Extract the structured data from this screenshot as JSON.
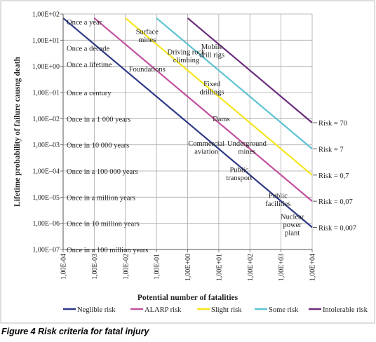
{
  "caption": "Figure 4 Risk criteria for fatal injury",
  "chart_data": {
    "type": "line",
    "title": "",
    "xlabel": "Potential number of fatalities",
    "ylabel": "Lifetime probability of failure causng death",
    "x_scale": "log",
    "y_scale": "log",
    "xlim": [
      0.0001,
      10000
    ],
    "ylim": [
      1e-07,
      100
    ],
    "x_ticks": [
      0.0001,
      0.001,
      0.01,
      0.1,
      1,
      10,
      100,
      1000,
      10000
    ],
    "x_tick_labels": [
      "1,00E-04",
      "1,00E-03",
      "1,00E-02",
      "1,00E-01",
      "1,00E+00",
      "1,00E+01",
      "1,00E+02",
      "1,00E+03",
      "1,00E+04"
    ],
    "y_ticks": [
      100,
      10,
      1,
      0.1,
      0.01,
      0.001,
      0.0001,
      1e-05,
      1e-06,
      1e-07
    ],
    "y_tick_labels": [
      "1,00E+02",
      "1,00E+01",
      "1,00E+00",
      "1,00E–01",
      "1,00E–02",
      "1,00E–03",
      "1,00E–04",
      "1,00E–05",
      "1,00E–06",
      "1,00E–07"
    ],
    "grid": true,
    "legend_position": "bottom",
    "series": [
      {
        "name": "Neglible risk",
        "color": "#2e3a87",
        "x": [
          0.0001,
          10000
        ],
        "y": [
          70,
          7e-07
        ]
      },
      {
        "name": "ALARP risk",
        "color": "#c2509e",
        "x": [
          0.001,
          10000
        ],
        "y": [
          70,
          7e-06
        ]
      },
      {
        "name": "Slight risk",
        "color": "#f5e51e",
        "x": [
          0.01,
          10000
        ],
        "y": [
          70,
          7e-05
        ]
      },
      {
        "name": "Some risk",
        "color": "#5ec3d2",
        "x": [
          0.1,
          10000
        ],
        "y": [
          70,
          0.0007
        ]
      },
      {
        "name": "Intolerable risk",
        "color": "#6b2d7b",
        "x": [
          1,
          10000
        ],
        "y": [
          70,
          0.007
        ]
      }
    ],
    "risk_labels": [
      {
        "text": "Risk = 70",
        "y": 0.007
      },
      {
        "text": "Risk = 7",
        "y": 0.0007
      },
      {
        "text": "Risk = 0,7",
        "y": 7e-05
      },
      {
        "text": "Risk = 0,07",
        "y": 7e-06
      },
      {
        "text": "Risk = 0,007",
        "y": 7e-07
      }
    ],
    "frequency_labels": [
      {
        "text": "Once a year",
        "y": 50
      },
      {
        "text": "Once a decade",
        "y": 5
      },
      {
        "text": "Once a lifetime",
        "y": 1.2
      },
      {
        "text": "Once a century",
        "y": 0.1
      },
      {
        "text": "Once in a 1 000 years",
        "y": 0.01
      },
      {
        "text": "Once in 10 000 years",
        "y": 0.001
      },
      {
        "text": "Once in a 100 000 years",
        "y": 0.0001
      },
      {
        "text": "Once in a million years",
        "y": 1e-05
      },
      {
        "text": "Once in 10 million years",
        "y": 1e-06
      },
      {
        "text": "Once in a 100 million years",
        "y": 1e-07
      }
    ],
    "annotations": [
      {
        "text": [
          "Surface",
          "mines"
        ],
        "x": 0.05,
        "y": 15
      },
      {
        "text": [
          "Driving rock",
          "climbing"
        ],
        "x": 0.9,
        "y": 2.5
      },
      {
        "text": [
          "Mobile",
          "drill rigs"
        ],
        "x": 6,
        "y": 4
      },
      {
        "text": [
          "Foundations"
        ],
        "x": 0.05,
        "y": 0.8
      },
      {
        "text": [
          "Fixed",
          "drillings"
        ],
        "x": 6,
        "y": 0.15
      },
      {
        "text": [
          "Dams"
        ],
        "x": 12,
        "y": 0.01
      },
      {
        "text": [
          "Commercial",
          "aviation"
        ],
        "x": 4,
        "y": 0.0008
      },
      {
        "text": [
          "Underground",
          "mines"
        ],
        "x": 80,
        "y": 0.0008
      },
      {
        "text": [
          "Public",
          "transport"
        ],
        "x": 45,
        "y": 8e-05
      },
      {
        "text": [
          "Public",
          "facilities"
        ],
        "x": 800,
        "y": 8e-06
      },
      {
        "text": [
          "Nuclear",
          "power",
          "plant"
        ],
        "x": 2300,
        "y": 9e-07
      }
    ]
  }
}
